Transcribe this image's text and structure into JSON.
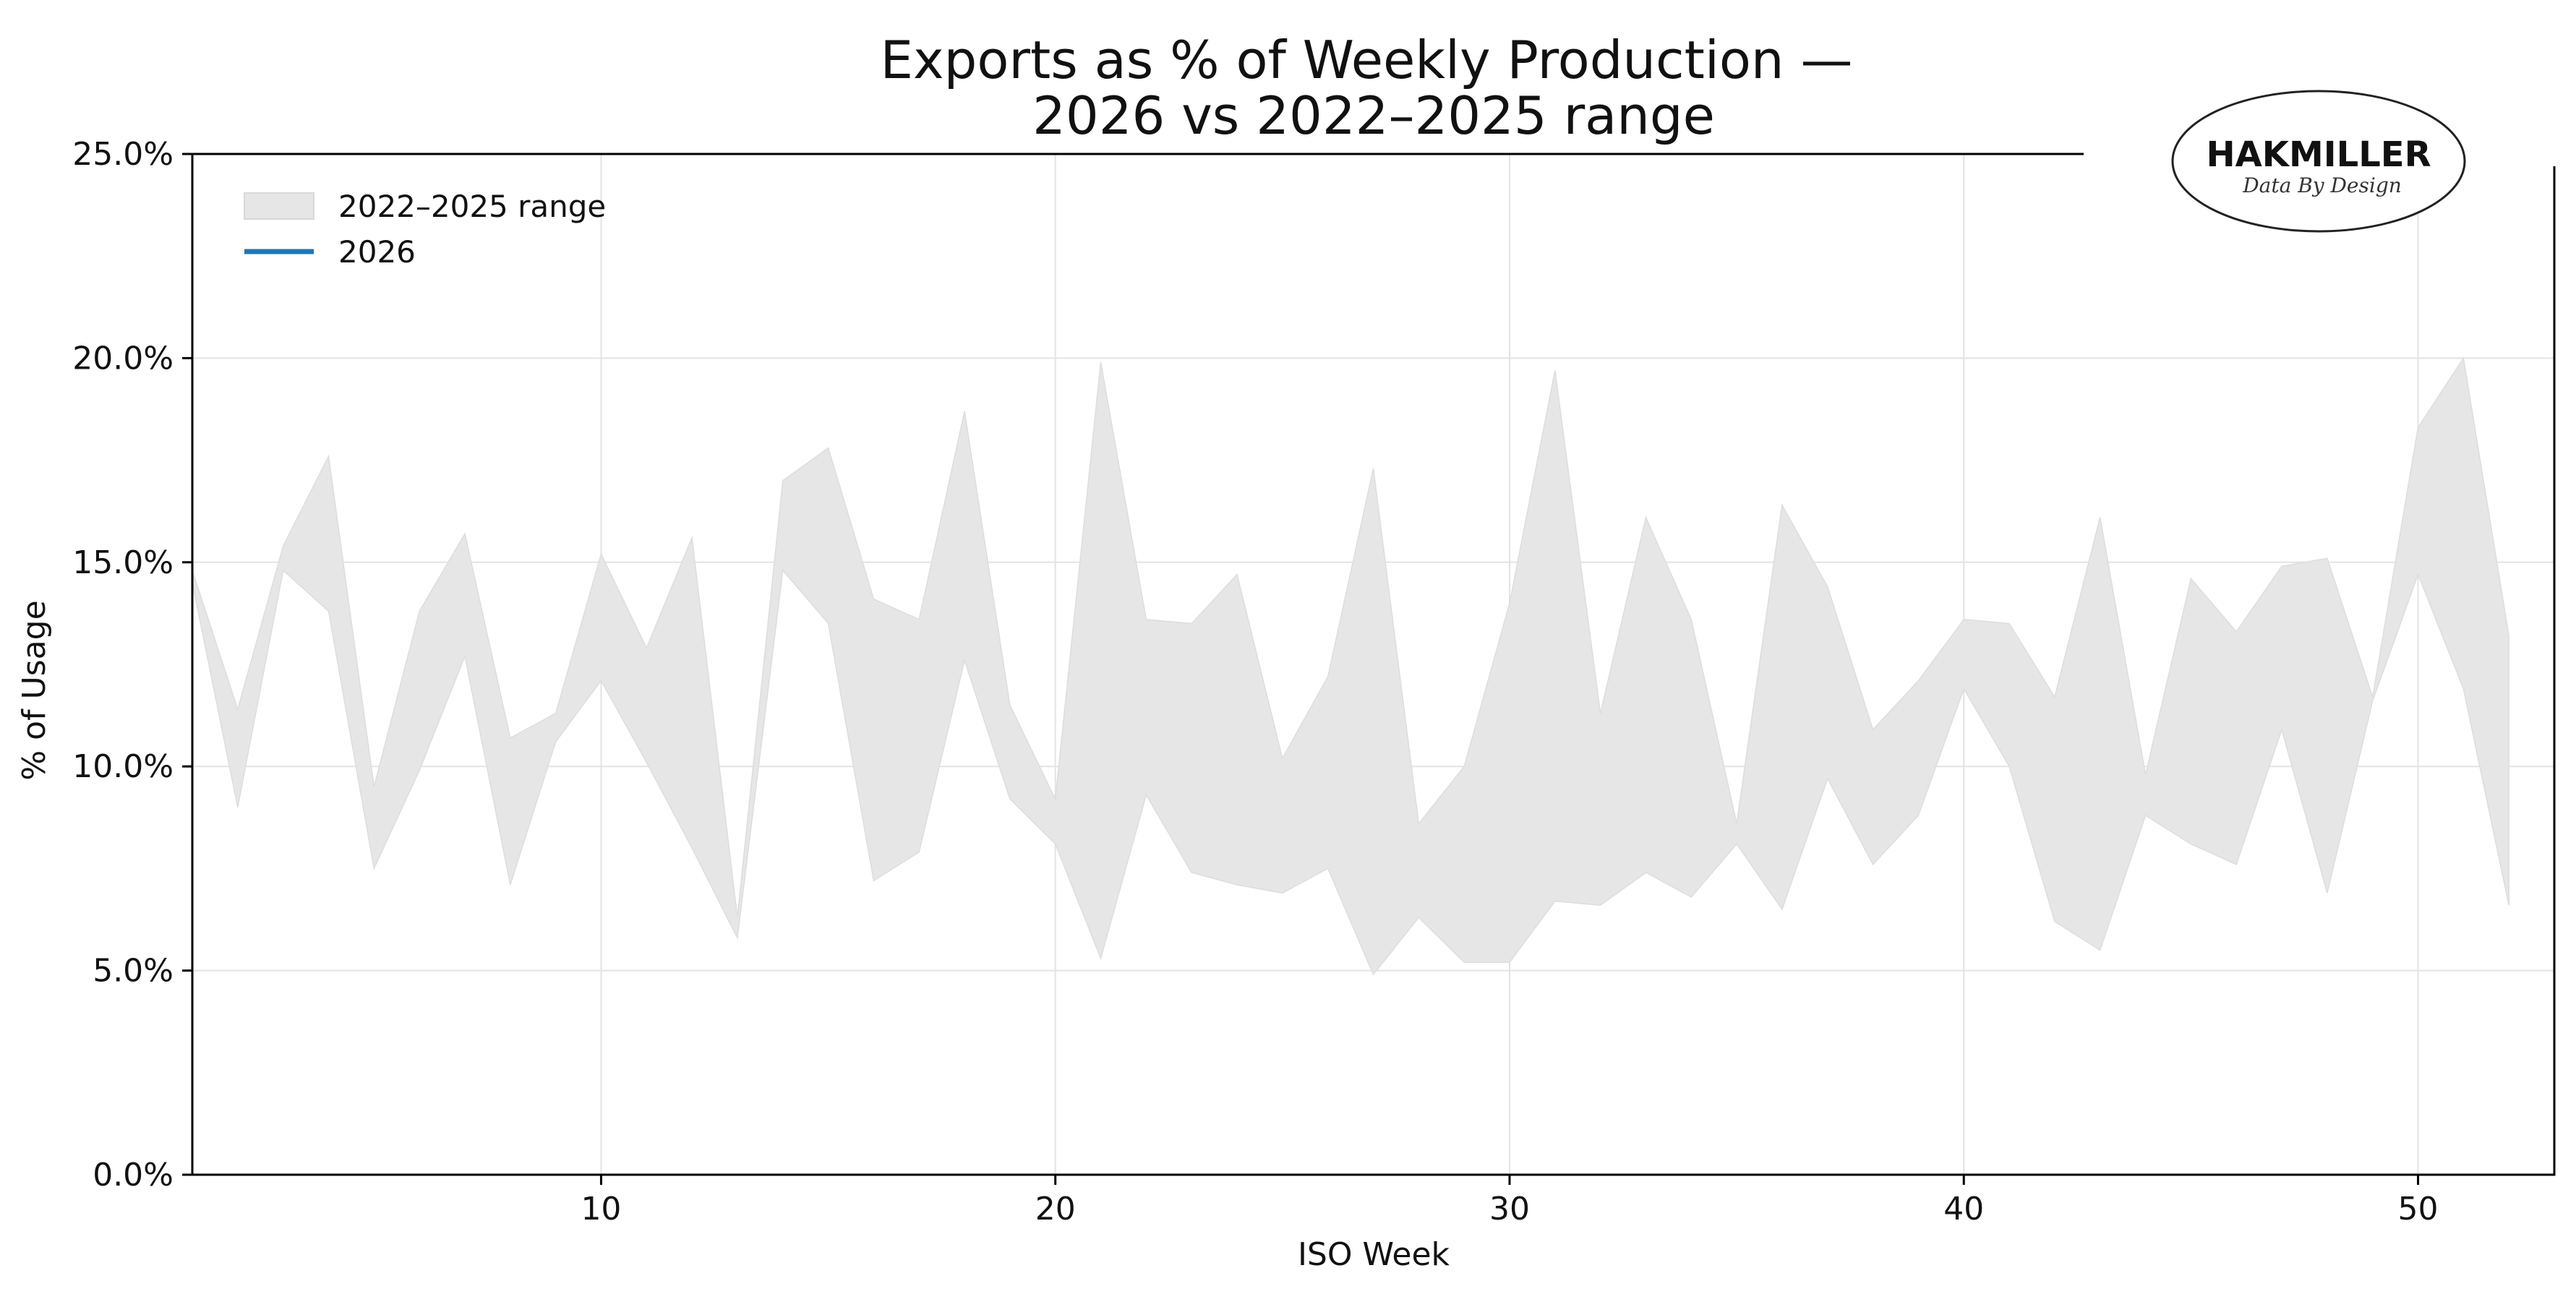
{
  "chart_data": {
    "type": "area",
    "title_line1": "Exports as % of Weekly Production —",
    "title_line2": "2026 vs 2022–2025 range",
    "xlabel": "ISO Week",
    "ylabel": "% of Usage",
    "xlim": [
      1,
      53
    ],
    "ylim": [
      0,
      25
    ],
    "x_ticks": [
      10,
      20,
      30,
      40,
      50
    ],
    "x_tick_labels": [
      "10",
      "20",
      "30",
      "40",
      "50"
    ],
    "y_ticks": [
      0,
      5,
      10,
      15,
      20,
      25
    ],
    "y_tick_labels": [
      "0.0%",
      "5.0%",
      "10.0%",
      "15.0%",
      "20.0%",
      "25.0%"
    ],
    "grid": true,
    "legend_position": "top-left",
    "legend": [
      {
        "label": "2022–2025 range",
        "kind": "band",
        "color": "#e6e6e6"
      },
      {
        "label": "2026",
        "kind": "line",
        "color": "#1f77b4"
      }
    ],
    "series": [
      {
        "name": "2022–2025 range",
        "x": [
          1,
          2,
          3,
          4,
          5,
          6,
          7,
          8,
          9,
          10,
          11,
          12,
          13,
          14,
          15,
          16,
          17,
          18,
          19,
          20,
          21,
          22,
          23,
          24,
          25,
          26,
          27,
          28,
          29,
          30,
          31,
          32,
          33,
          34,
          35,
          36,
          37,
          38,
          39,
          40,
          41,
          42,
          43,
          44,
          45,
          46,
          47,
          48,
          49,
          50,
          51,
          52
        ],
        "low": [
          14.5,
          9.0,
          14.8,
          13.8,
          7.5,
          9.9,
          12.7,
          7.1,
          10.6,
          12.1,
          10.1,
          8.0,
          5.8,
          14.8,
          13.5,
          7.2,
          7.9,
          12.6,
          9.2,
          8.1,
          5.3,
          9.3,
          7.4,
          7.1,
          6.9,
          7.5,
          4.9,
          6.3,
          5.2,
          5.2,
          6.7,
          6.6,
          7.4,
          6.8,
          8.1,
          6.5,
          9.7,
          7.6,
          8.8,
          11.9,
          10.0,
          6.2,
          5.5,
          8.8,
          8.1,
          7.6,
          10.9,
          6.9,
          11.6,
          14.7,
          11.9,
          6.6
        ],
        "high": [
          14.8,
          11.4,
          15.4,
          17.6,
          9.5,
          13.8,
          15.7,
          10.7,
          11.3,
          15.2,
          12.9,
          15.6,
          6.3,
          17.0,
          17.8,
          14.1,
          13.6,
          18.7,
          11.5,
          9.2,
          19.9,
          13.6,
          13.5,
          14.7,
          10.2,
          12.2,
          17.3,
          8.6,
          10.0,
          14.0,
          19.7,
          11.3,
          16.1,
          13.6,
          8.6,
          16.4,
          14.4,
          10.9,
          12.1,
          13.6,
          13.5,
          11.7,
          16.1,
          9.8,
          14.6,
          13.3,
          14.9,
          15.1,
          11.7,
          18.3,
          20.0,
          13.2
        ]
      },
      {
        "name": "2026",
        "x": [],
        "values": []
      }
    ]
  },
  "logo": {
    "brand": "HAKMILLER",
    "tagline": "Data By Design"
  },
  "colors": {
    "band": "#e6e6e6",
    "line_2026": "#1f77b4",
    "grid": "#e3e3e3",
    "axis": "#000000"
  }
}
